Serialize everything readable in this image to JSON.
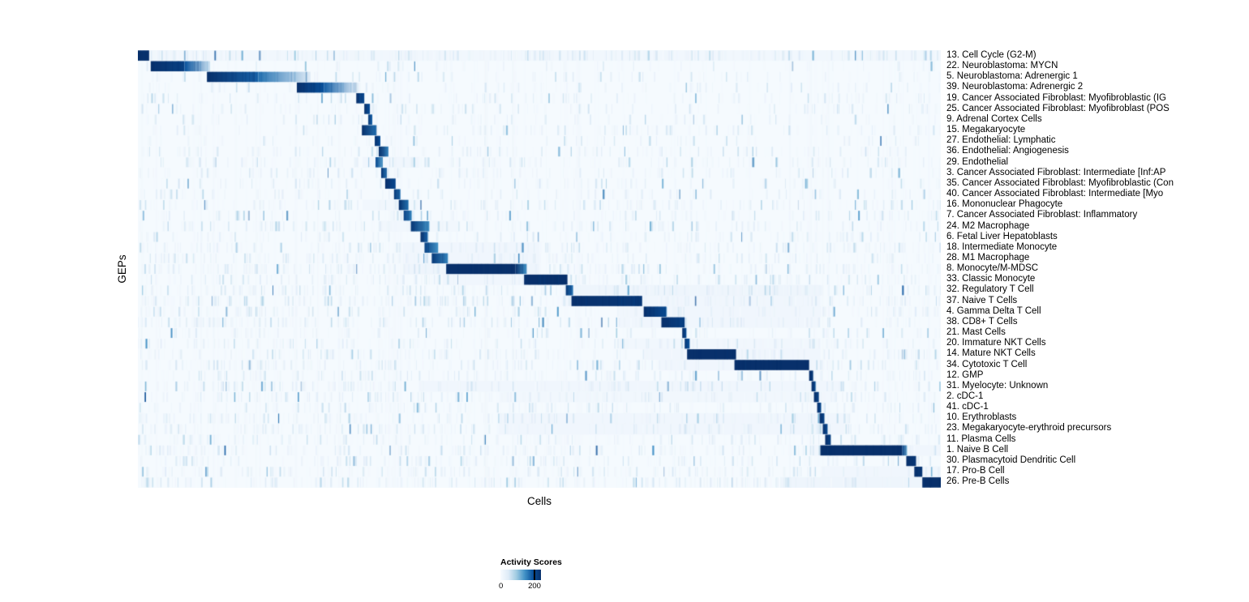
{
  "chart_data": {
    "type": "heatmap",
    "title": "",
    "xlabel": "Cells",
    "ylabel": "GEPs",
    "legend": {
      "title": "Activity Scores",
      "ticks": [
        "0",
        "200"
      ]
    },
    "value_range": [
      0,
      200
    ],
    "colormap": {
      "name": "Blues",
      "stops": [
        "#f7fbff",
        "#deebf7",
        "#9ecae1",
        "#4292c6",
        "#08519c",
        "#08306b"
      ]
    },
    "layout": {
      "grid": false,
      "legend_position": "bottom",
      "row_labels_position": "right"
    },
    "rows": [
      {
        "label": "13. Cell Cycle (G2-M)",
        "blocks": [
          [
            0.0,
            0.014,
            240,
            200
          ]
        ],
        "bands": [
          [
            0.0,
            1.0,
            10
          ]
        ],
        "noise": 3.0
      },
      {
        "label": "22. Neuroblastoma: MYCN",
        "blocks": [
          [
            0.016,
            0.058,
            240,
            180
          ],
          [
            0.058,
            0.09,
            160,
            50
          ]
        ],
        "noise": 0.6
      },
      {
        "label": "5. Neuroblastoma: Adrenergic 1",
        "blocks": [
          [
            0.086,
            0.15,
            230,
            150
          ],
          [
            0.15,
            0.215,
            140,
            35
          ]
        ],
        "noise": 0.8
      },
      {
        "label": "39. Neuroblastoma: Adrenergic 2",
        "blocks": [
          [
            0.198,
            0.232,
            220,
            160
          ],
          [
            0.232,
            0.272,
            150,
            40
          ]
        ],
        "noise": 0.8
      },
      {
        "label": "19. Cancer Associated Fibroblast: Myofibroblastic (IG",
        "blocks": [
          [
            0.272,
            0.282,
            210,
            170
          ]
        ],
        "noise": 1.0
      },
      {
        "label": "25. Cancer Associated Fibroblast: Myofibroblast (POS",
        "blocks": [
          [
            0.282,
            0.289,
            200,
            160
          ]
        ],
        "noise": 1.0
      },
      {
        "label": "9. Adrenal Cortex Cells",
        "blocks": [
          [
            0.287,
            0.292,
            190,
            150
          ]
        ],
        "noise": 0.8
      },
      {
        "label": "15. Megakaryocyte",
        "blocks": [
          [
            0.279,
            0.297,
            210,
            140
          ]
        ],
        "noise": 1.2
      },
      {
        "label": "27. Endothelial: Lymphatic",
        "blocks": [
          [
            0.295,
            0.302,
            210,
            160
          ]
        ],
        "noise": 0.8
      },
      {
        "label": "36. Endothelial: Angiogenesis",
        "blocks": [
          [
            0.3,
            0.312,
            200,
            130
          ]
        ],
        "noise": 1.2
      },
      {
        "label": "29. Endothelial",
        "blocks": [
          [
            0.296,
            0.305,
            170,
            110
          ]
        ],
        "bands": [
          [
            0.28,
            0.35,
            12
          ]
        ],
        "noise": 1.5
      },
      {
        "label": "3. Cancer Associated Fibroblast: Intermediate [Inf:AP",
        "blocks": [
          [
            0.303,
            0.31,
            190,
            140
          ]
        ],
        "noise": 1.2
      },
      {
        "label": "35. Cancer Associated Fibroblast: Myofibroblastic (Con",
        "blocks": [
          [
            0.308,
            0.321,
            220,
            170
          ]
        ],
        "noise": 1.0
      },
      {
        "label": "40. Cancer Associated Fibroblast: Intermediate [Myo",
        "blocks": [
          [
            0.319,
            0.327,
            190,
            140
          ]
        ],
        "noise": 1.0
      },
      {
        "label": "16. Mononuclear Phagocyte",
        "blocks": [
          [
            0.325,
            0.337,
            200,
            140
          ]
        ],
        "bands": [
          [
            0.28,
            0.35,
            10
          ]
        ],
        "noise": 1.5
      },
      {
        "label": "7. Cancer Associated Fibroblast: Inflammatory",
        "blocks": [
          [
            0.331,
            0.341,
            180,
            130
          ]
        ],
        "noise": 1.2
      },
      {
        "label": "24. M2 Macrophage",
        "blocks": [
          [
            0.34,
            0.363,
            190,
            120
          ]
        ],
        "bands": [
          [
            0.3,
            0.4,
            10
          ]
        ],
        "noise": 1.5
      },
      {
        "label": "6. Fetal Liver Hepatoblasts",
        "blocks": [
          [
            0.352,
            0.361,
            200,
            150
          ]
        ],
        "noise": 1.2
      },
      {
        "label": "18. Intermediate Monocyte",
        "blocks": [
          [
            0.357,
            0.374,
            180,
            120
          ]
        ],
        "bands": [
          [
            0.33,
            0.5,
            12
          ]
        ],
        "noise": 1.8
      },
      {
        "label": "28. M1 Macrophage",
        "blocks": [
          [
            0.366,
            0.386,
            190,
            130
          ]
        ],
        "bands": [
          [
            0.33,
            0.5,
            12
          ]
        ],
        "noise": 1.8
      },
      {
        "label": "8. Monocyte/M-MDSC",
        "blocks": [
          [
            0.384,
            0.47,
            250,
            220
          ],
          [
            0.47,
            0.484,
            200,
            120
          ]
        ],
        "bands": [
          [
            0.33,
            0.5,
            14
          ]
        ],
        "noise": 2.0
      },
      {
        "label": "33. Classic Monocyte",
        "blocks": [
          [
            0.481,
            0.535,
            240,
            200
          ]
        ],
        "bands": [
          [
            0.38,
            0.54,
            12
          ]
        ],
        "noise": 1.8
      },
      {
        "label": "32. Regulatory T Cell",
        "blocks": [
          [
            0.533,
            0.542,
            190,
            140
          ]
        ],
        "bands": [
          [
            0.53,
            0.85,
            14
          ]
        ],
        "noise": 2.0
      },
      {
        "label": "37. Naive T Cells",
        "blocks": [
          [
            0.54,
            0.628,
            230,
            190
          ]
        ],
        "bands": [
          [
            0.53,
            0.85,
            12
          ]
        ],
        "noise": 2.2
      },
      {
        "label": "4. Gamma Delta T Cell",
        "blocks": [
          [
            0.63,
            0.658,
            220,
            170
          ]
        ],
        "bands": [
          [
            0.6,
            0.85,
            12
          ]
        ],
        "noise": 1.8
      },
      {
        "label": "38. CD8+ T Cells",
        "blocks": [
          [
            0.652,
            0.681,
            230,
            180
          ]
        ],
        "bands": [
          [
            0.6,
            0.85,
            12
          ]
        ],
        "noise": 1.8
      },
      {
        "label": "21. Mast Cells",
        "blocks": [
          [
            0.678,
            0.683,
            200,
            170
          ]
        ],
        "noise": 1.2
      },
      {
        "label": "20. Immature NKT Cells",
        "blocks": [
          [
            0.681,
            0.687,
            190,
            160
          ]
        ],
        "bands": [
          [
            0.6,
            0.85,
            10
          ]
        ],
        "noise": 1.5
      },
      {
        "label": "14. Mature NKT Cells",
        "blocks": [
          [
            0.684,
            0.745,
            240,
            200
          ]
        ],
        "bands": [
          [
            0.63,
            0.85,
            12
          ]
        ],
        "noise": 1.8
      },
      {
        "label": "34. Cytotoxic T Cell",
        "blocks": [
          [
            0.743,
            0.836,
            250,
            210
          ]
        ],
        "bands": [
          [
            0.65,
            0.85,
            12
          ]
        ],
        "noise": 2.0
      },
      {
        "label": "12. GMP",
        "blocks": [
          [
            0.836,
            0.841,
            220,
            190
          ]
        ],
        "noise": 1.5
      },
      {
        "label": "31. Myelocyte: Unknown",
        "blocks": [
          [
            0.839,
            0.844,
            200,
            170
          ]
        ],
        "bands": [
          [
            0.35,
            0.88,
            12
          ]
        ],
        "noise": 2.0
      },
      {
        "label": "2. cDC-1",
        "blocks": [
          [
            0.842,
            0.848,
            210,
            180
          ]
        ],
        "bands": [
          [
            0.45,
            0.87,
            10
          ]
        ],
        "noise": 1.8
      },
      {
        "label": "41. cDC-1",
        "blocks": [
          [
            0.846,
            0.851,
            200,
            170
          ]
        ],
        "noise": 1.5
      },
      {
        "label": "10. Erythroblasts",
        "blocks": [
          [
            0.849,
            0.855,
            210,
            180
          ]
        ],
        "bands": [
          [
            0.45,
            0.88,
            12
          ]
        ],
        "noise": 1.8
      },
      {
        "label": "23. Megakaryocyte-erythroid precursors",
        "blocks": [
          [
            0.853,
            0.859,
            200,
            170
          ]
        ],
        "bands": [
          [
            0.45,
            0.88,
            12
          ]
        ],
        "noise": 2.0
      },
      {
        "label": "11. Plasma Cells",
        "blocks": [
          [
            0.856,
            0.863,
            210,
            180
          ]
        ],
        "noise": 1.5
      },
      {
        "label": "1. Naive B Cell",
        "blocks": [
          [
            0.85,
            0.952,
            250,
            210
          ],
          [
            0.952,
            0.958,
            180,
            100
          ]
        ],
        "bands": [
          [
            0.84,
            1.0,
            12
          ]
        ],
        "noise": 1.8
      },
      {
        "label": "30. Plasmacytoid Dendritic Cell",
        "blocks": [
          [
            0.957,
            0.969,
            230,
            190
          ]
        ],
        "noise": 1.5
      },
      {
        "label": "17. Pro-B Cell",
        "blocks": [
          [
            0.967,
            0.977,
            220,
            190
          ]
        ],
        "bands": [
          [
            0.85,
            1.0,
            12
          ]
        ],
        "noise": 1.8
      },
      {
        "label": "26. Pre-B Cells",
        "blocks": [
          [
            0.977,
            1.0,
            250,
            220
          ]
        ],
        "bands": [
          [
            0.8,
            1.0,
            14
          ]
        ],
        "noise": 2.0
      }
    ]
  }
}
